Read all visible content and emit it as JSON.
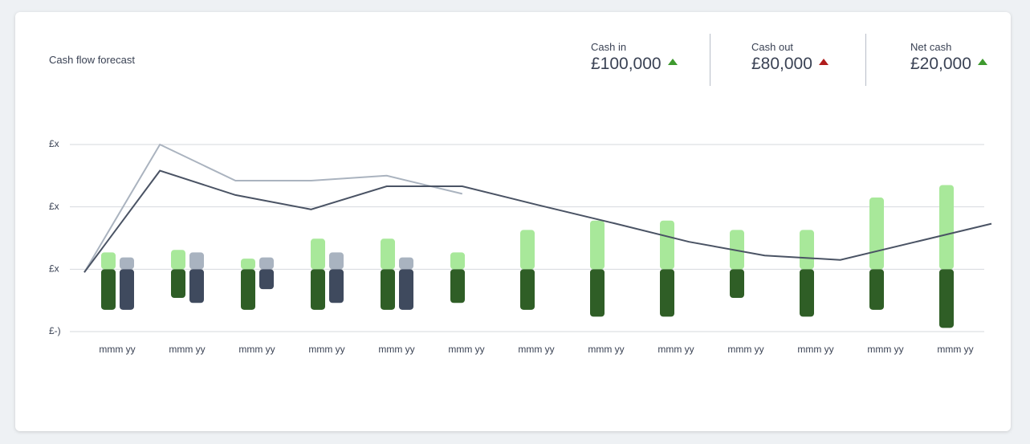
{
  "chart_data": {
    "type": "bar",
    "title": "Cash flow forecast",
    "kpis": [
      {
        "label": "Cash in",
        "value": "£100,000",
        "trend": "up",
        "color": "#3e9a2e"
      },
      {
        "label": "Cash out",
        "value": "£80,000",
        "trend": "up",
        "color": "#b01c1c"
      },
      {
        "label": "Net cash",
        "value": "£20,000",
        "trend": "up",
        "color": "#3e9a2e"
      }
    ],
    "categories": [
      "mmm yy",
      "mmm yy",
      "mmm yy",
      "mmm yy",
      "mmm yy",
      "mmm yy",
      "mmm yy",
      "mmm yy",
      "mmm yy",
      "mmm yy",
      "mmm yy",
      "mmm yy",
      "mmm yy"
    ],
    "series": [
      {
        "type": "bar",
        "slot": 0,
        "color": "#a8e89a",
        "values": [
          0.27,
          0.31,
          0.17,
          0.49,
          0.49,
          0.27,
          0.63,
          0.78,
          0.78,
          0.63,
          0.63,
          1.15,
          1.35
        ]
      },
      {
        "type": "bar",
        "slot": 0,
        "color": "#2f5e26",
        "values": [
          -0.65,
          -0.46,
          -0.65,
          -0.65,
          -0.65,
          -0.54,
          -0.65,
          -0.76,
          -0.76,
          -0.46,
          -0.76,
          -0.65,
          -0.94
        ]
      },
      {
        "type": "bar",
        "slot": 1,
        "color": "#a9b3c0",
        "values": [
          0.19,
          0.27,
          0.19,
          0.27,
          0.19,
          null,
          null,
          null,
          null,
          null,
          null,
          null,
          null
        ]
      },
      {
        "type": "bar",
        "slot": 1,
        "color": "#3f4a5e",
        "values": [
          -0.65,
          -0.54,
          -0.32,
          -0.54,
          -0.65,
          null,
          null,
          null,
          null,
          null,
          null,
          null,
          null
        ]
      },
      {
        "type": "line",
        "color": "#aab3bf",
        "values": [
          -0.05,
          2.0,
          1.42,
          1.42,
          1.5,
          1.21,
          null,
          null,
          null,
          null,
          null,
          null,
          null
        ]
      },
      {
        "type": "line",
        "color": "#4a5364",
        "values": [
          -0.05,
          1.58,
          1.19,
          0.96,
          1.33,
          1.33,
          1.03,
          0.74,
          0.44,
          0.22,
          0.15,
          0.44,
          0.73
        ]
      }
    ],
    "ylim": [
      -1,
      2
    ],
    "yticks": [
      {
        "value": -1,
        "label": "£-)"
      },
      {
        "value": 0,
        "label": "£x"
      },
      {
        "value": 1,
        "label": "£x"
      },
      {
        "value": 2,
        "label": "£x"
      }
    ],
    "grid": true
  }
}
